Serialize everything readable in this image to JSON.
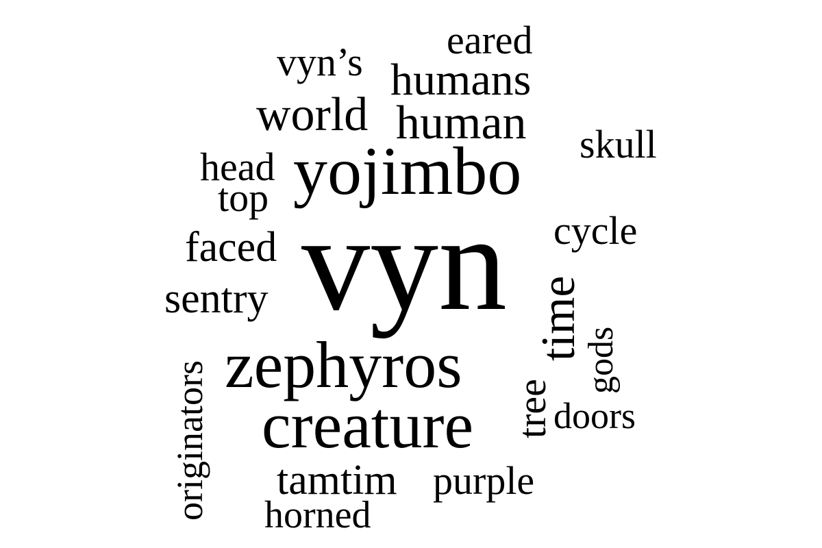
{
  "cloud": {
    "text_color": "#000000",
    "background": "#ffffff",
    "words": [
      {
        "text": "vyn",
        "weight": 1.0
      },
      {
        "text": "yojimbo",
        "weight": 0.55
      },
      {
        "text": "zephyros",
        "weight": 0.55
      },
      {
        "text": "creature",
        "weight": 0.5
      },
      {
        "text": "world",
        "weight": 0.4
      },
      {
        "text": "human",
        "weight": 0.4
      },
      {
        "text": "humans",
        "weight": 0.36
      },
      {
        "text": "time",
        "weight": 0.36
      },
      {
        "text": "vyn’s",
        "weight": 0.3
      },
      {
        "text": "eared",
        "weight": 0.3
      },
      {
        "text": "head",
        "weight": 0.3
      },
      {
        "text": "top",
        "weight": 0.3
      },
      {
        "text": "skull",
        "weight": 0.3
      },
      {
        "text": "cycle",
        "weight": 0.3
      },
      {
        "text": "faced",
        "weight": 0.3
      },
      {
        "text": "sentry",
        "weight": 0.3
      },
      {
        "text": "tree",
        "weight": 0.3
      },
      {
        "text": "gods",
        "weight": 0.3
      },
      {
        "text": "doors",
        "weight": 0.3
      },
      {
        "text": "originators",
        "weight": 0.3
      },
      {
        "text": "tamtim",
        "weight": 0.3
      },
      {
        "text": "purple",
        "weight": 0.3
      },
      {
        "text": "horned",
        "weight": 0.3
      }
    ]
  }
}
